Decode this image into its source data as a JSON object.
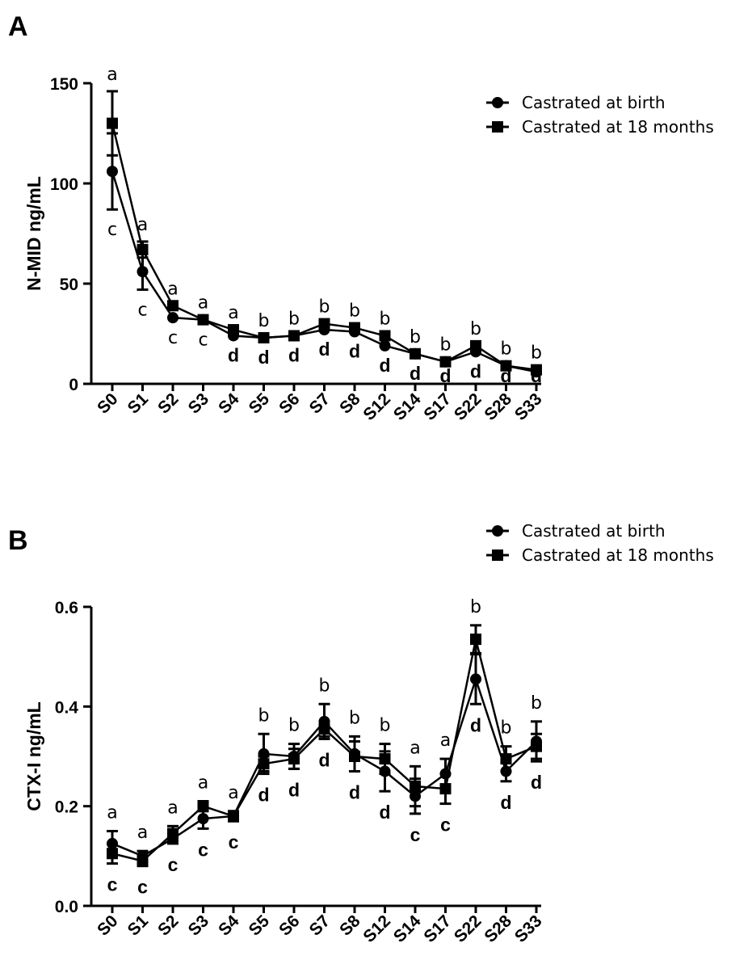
{
  "chart_data": [
    {
      "panel": "A",
      "type": "line",
      "ylabel": "N-MID ng/mL",
      "xlabel": "",
      "ylim": [
        0,
        150
      ],
      "yticks": [
        0,
        50,
        100,
        150
      ],
      "categories": [
        "S0",
        "S1",
        "S2",
        "S3",
        "S4",
        "S5",
        "S6",
        "S7",
        "S8",
        "S12",
        "S14",
        "S17",
        "S22",
        "S28",
        "S33"
      ],
      "legend_position": "top-right",
      "series": [
        {
          "name": "Castrated at birth",
          "marker": "circle",
          "values": [
            106,
            56,
            33,
            32,
            24,
            23,
            24,
            27,
            26,
            19,
            15,
            11,
            16,
            9,
            6
          ],
          "errors": [
            19,
            9,
            0,
            0,
            0,
            0,
            0,
            0,
            0,
            0,
            0,
            0,
            0,
            0,
            0
          ]
        },
        {
          "name": "Castrated at 18 months",
          "marker": "square",
          "values": [
            130,
            67,
            39,
            32,
            27,
            23,
            24,
            30,
            28,
            24,
            15,
            11,
            19,
            9,
            7
          ],
          "errors": [
            16,
            4,
            0,
            0,
            0,
            0,
            0,
            0,
            0,
            0,
            0,
            0,
            0,
            0,
            0
          ]
        }
      ],
      "annotations_top": [
        "a",
        "a",
        "a",
        "a",
        "a",
        "b",
        "b",
        "b",
        "b",
        "b",
        "b",
        "b",
        "b",
        "b",
        "b"
      ],
      "annotations_bottom": [
        "c",
        "c",
        "c",
        "c",
        "d",
        "d",
        "d",
        "d",
        "d",
        "d",
        "d",
        "d",
        "d",
        "d",
        "d"
      ]
    },
    {
      "panel": "B",
      "type": "line",
      "ylabel": "CTX-I ng/mL",
      "xlabel": "",
      "ylim": [
        0,
        0.6
      ],
      "yticks": [
        0.0,
        0.2,
        0.4,
        0.6
      ],
      "ytick_labels": [
        "0.0",
        "0.2",
        "0.4",
        "0.6"
      ],
      "categories": [
        "S0",
        "S1",
        "S2",
        "S3",
        "S4",
        "S5",
        "S6",
        "S7",
        "S8",
        "S12",
        "S14",
        "S17",
        "S22",
        "S28",
        "S33"
      ],
      "legend_position": "top-right",
      "series": [
        {
          "name": "Castrated at birth",
          "marker": "circle",
          "values": [
            0.125,
            0.1,
            0.135,
            0.175,
            0.18,
            0.305,
            0.3,
            0.37,
            0.305,
            0.27,
            0.22,
            0.265,
            0.455,
            0.27,
            0.33
          ],
          "errors": [
            0.025,
            0.01,
            0.01,
            0.02,
            0.01,
            0.04,
            0.025,
            0.035,
            0.035,
            0.04,
            0.035,
            0.03,
            0.05,
            0.02,
            0.04
          ]
        },
        {
          "name": "Castrated at 18 months",
          "marker": "square",
          "values": [
            0.105,
            0.09,
            0.145,
            0.2,
            0.18,
            0.285,
            0.295,
            0.355,
            0.3,
            0.295,
            0.24,
            0.235,
            0.535,
            0.295,
            0.32
          ],
          "errors": [
            0.02,
            0.01,
            0.015,
            0.01,
            0.01,
            0.015,
            0.02,
            0.015,
            0.03,
            0.03,
            0.04,
            0.03,
            0.028,
            0.025,
            0.025
          ]
        }
      ],
      "annotations_top": [
        "a",
        "a",
        "a",
        "a",
        "a",
        "b",
        "b",
        "b",
        "b",
        "b",
        "a",
        "a",
        "b",
        "b",
        "b"
      ],
      "annotations_bottom": [
        "c",
        "c",
        "c",
        "c",
        "c",
        "d",
        "d",
        "d",
        "d",
        "d",
        "c",
        "c",
        "d",
        "d",
        "d"
      ]
    }
  ]
}
